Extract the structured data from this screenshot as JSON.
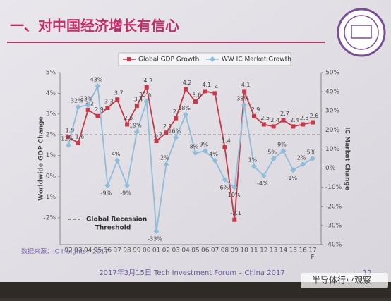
{
  "header": {
    "title": "一、对中国经济增长有信心"
  },
  "chart_data": {
    "type": "line",
    "categories": [
      "92",
      "93",
      "94",
      "95",
      "96",
      "97",
      "98",
      "99",
      "00",
      "01",
      "02",
      "03",
      "04",
      "05",
      "06",
      "07",
      "08",
      "09",
      "10",
      "11",
      "12",
      "13",
      "14",
      "15",
      "16",
      "17"
    ],
    "forecast_mark": "F",
    "ylabel": "Worldwide GDP Change",
    "y2label": "IC Market Change",
    "series": [
      {
        "name": "Global GDP Growth",
        "color": "#c8394a",
        "marker": "square",
        "values": [
          1.9,
          1.6,
          3.2,
          2.9,
          3.3,
          3.7,
          2.5,
          3.4,
          4.3,
          1.7,
          2.1,
          2.8,
          4.2,
          3.6,
          4.1,
          4.0,
          1.4,
          -2.1,
          4.1,
          2.9,
          2.5,
          2.4,
          2.7,
          2.4,
          2.5,
          2.6
        ]
      },
      {
        "name": "WW IC Market Growth",
        "color": "#8fbcd9",
        "marker": "diamond",
        "axis": "y2",
        "values": [
          12,
          32,
          33,
          43,
          -9,
          4,
          -9,
          19,
          35,
          -33,
          2,
          16,
          28,
          8,
          9,
          4,
          -6,
          -10,
          33,
          1,
          -4,
          5,
          9,
          -1,
          2,
          5
        ],
        "value_labels": [
          "12%",
          "32%",
          "33%",
          "43%",
          "-9%",
          "4%",
          "-9%",
          "19%",
          "35%",
          "-33%",
          "2%",
          "16%",
          "28%",
          "8%",
          "9%",
          "4%",
          "-6%",
          "-10%",
          "33%",
          "1%",
          "-4%",
          "5%",
          "9%",
          "-1%",
          "2%",
          "5%"
        ]
      }
    ],
    "ylim": [
      -3.3,
      5
    ],
    "yticks": [
      {
        "value": -2,
        "label": "-2%"
      },
      {
        "value": -1,
        "label": "-1%"
      },
      {
        "value": 0,
        "label": "0%"
      },
      {
        "value": 1,
        "label": "1%"
      },
      {
        "value": 2,
        "label": "2%"
      },
      {
        "value": 3,
        "label": "3%"
      },
      {
        "value": 4,
        "label": "4%"
      },
      {
        "value": 5,
        "label": "5%"
      }
    ],
    "y2lim": [
      -40,
      50
    ],
    "y2ticks": [
      {
        "value": -40,
        "label": "-40%"
      },
      {
        "value": -30,
        "label": "-30%"
      },
      {
        "value": -20,
        "label": "-20%"
      },
      {
        "value": -10,
        "label": "-10%"
      },
      {
        "value": 0,
        "label": "0%"
      },
      {
        "value": 10,
        "label": "10%"
      },
      {
        "value": 20,
        "label": "20%"
      },
      {
        "value": 30,
        "label": "30%"
      },
      {
        "value": 40,
        "label": "40%"
      },
      {
        "value": 50,
        "label": "50%"
      }
    ],
    "threshold": {
      "value": 2,
      "label": [
        "Global Recession",
        "Threshold"
      ]
    }
  },
  "source": "数据来源：IC Insights，2017",
  "footer": "2017年3月15日 Tech Investment Forum – China 2017",
  "page_number": "12",
  "watermark": "半导体行业观察"
}
